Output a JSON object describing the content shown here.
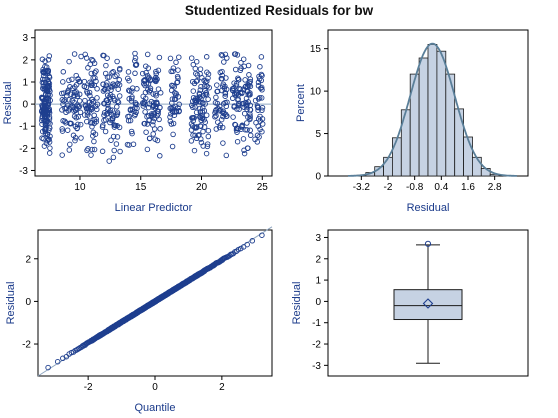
{
  "figure": {
    "title": "Studentized Residuals for bw"
  },
  "colors": {
    "frame": "#000000",
    "axis_text": "#000000",
    "label": "#1a3a8a",
    "marker": "#1f3f8f",
    "fit_line": "#5a7f99",
    "ref_line": "#8fa6c0",
    "bar_fill": "#c6d2e3",
    "bar_edge": "#1a1a1a"
  },
  "chart_data": [
    {
      "type": "scatter",
      "name": "residual-vs-predictor",
      "xlabel": "Linear Predictor",
      "ylabel": "Residual",
      "xlim": [
        6.3,
        25.8
      ],
      "ylim": [
        -3.25,
        3.35
      ],
      "xticks": [
        10,
        15,
        20,
        25
      ],
      "yticks": [
        -3,
        -2,
        -1,
        0,
        1,
        2,
        3
      ],
      "reference_line_y": 0,
      "clusters": [
        {
          "x": 7.2,
          "spread": 0.35,
          "n": 160
        },
        {
          "x": 9.3,
          "spread": 0.8,
          "n": 80
        },
        {
          "x": 10.9,
          "spread": 0.55,
          "n": 70
        },
        {
          "x": 12.6,
          "spread": 0.75,
          "n": 90
        },
        {
          "x": 14.3,
          "spread": 0.4,
          "n": 40
        },
        {
          "x": 15.9,
          "spread": 0.75,
          "n": 90
        },
        {
          "x": 17.8,
          "spread": 0.4,
          "n": 45
        },
        {
          "x": 19.9,
          "spread": 0.75,
          "n": 100
        },
        {
          "x": 21.6,
          "spread": 0.5,
          "n": 55
        },
        {
          "x": 23.3,
          "spread": 0.75,
          "n": 100
        },
        {
          "x": 24.7,
          "spread": 0.35,
          "n": 35
        }
      ]
    },
    {
      "type": "bar",
      "name": "residual-histogram",
      "xlabel": "Residual",
      "ylabel": "Percent",
      "xlim": [
        -4.7,
        4.3
      ],
      "ylim": [
        0,
        17.2
      ],
      "xticks": [
        -3.2,
        -2,
        -0.8,
        0.4,
        1.6,
        2.8
      ],
      "xtick_labels": [
        "-3.2",
        "-2",
        "-0.8",
        "0.4",
        "1.6",
        "2.8"
      ],
      "yticks": [
        0,
        5,
        10,
        15
      ],
      "bin_width": 0.4,
      "bin_midpoints": [
        -3.2,
        -2.8,
        -2.4,
        -2.0,
        -1.6,
        -1.2,
        -0.8,
        -0.4,
        0.0,
        0.4,
        0.8,
        1.2,
        1.6,
        2.0,
        2.4,
        2.8
      ],
      "values": [
        0.1,
        0.4,
        1.1,
        2.2,
        4.5,
        7.8,
        12.0,
        13.9,
        15.5,
        14.7,
        12.0,
        7.9,
        4.6,
        2.2,
        0.9,
        0.2
      ],
      "density_curve": {
        "type": "normal",
        "mean": 0,
        "sd": 1,
        "peak_percent": 15.6
      }
    },
    {
      "type": "scatter",
      "name": "residual-qq-plot",
      "xlabel": "Quantile",
      "ylabel": "Residual",
      "xlim": [
        -3.5,
        3.5
      ],
      "ylim": [
        -3.5,
        3.35
      ],
      "xticks": [
        -2,
        0,
        2
      ],
      "yticks": [
        -2,
        0,
        2
      ],
      "reference_line": {
        "slope": 1,
        "intercept": 0
      },
      "n_points": 900
    },
    {
      "type": "box",
      "name": "residual-boxplot",
      "ylabel": "Residual",
      "ylim": [
        -3.5,
        3.35
      ],
      "yticks": [
        -3,
        -2,
        -1,
        0,
        1,
        2,
        3
      ],
      "whisker_low": -2.9,
      "q1": -0.85,
      "median": -0.2,
      "mean": -0.1,
      "q3": 0.55,
      "whisker_high": 2.65,
      "outliers": [
        2.7
      ]
    }
  ]
}
